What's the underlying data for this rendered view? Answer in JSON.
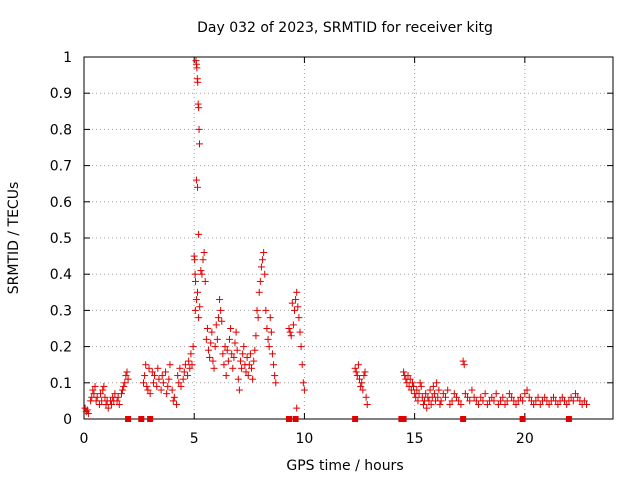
{
  "chart_data": {
    "type": "scatter",
    "title": "Day 032 of 2023, SRMTID for receiver kitg",
    "xlabel": "GPS time / hours",
    "ylabel": "SRMTID / TECUs",
    "xlim": [
      0,
      24
    ],
    "ylim": [
      0,
      1
    ],
    "x_ticks": [
      0,
      5,
      10,
      15,
      20
    ],
    "x_tick_labels": [
      "0",
      "5",
      "10",
      "15",
      "20"
    ],
    "y_ticks": [
      0,
      0.1,
      0.2,
      0.3,
      0.4,
      0.5,
      0.6,
      0.7,
      0.8,
      0.9,
      1
    ],
    "y_tick_labels": [
      "0",
      "0.1",
      "0.2",
      "0.3",
      "0.4",
      "0.5",
      "0.6",
      "0.7",
      "0.8",
      "0.9",
      "1"
    ],
    "grid": true,
    "marker": "+",
    "color": "#e00000",
    "series": [
      {
        "name": "SRMTID",
        "points": [
          [
            0.05,
            0.03
          ],
          [
            0.1,
            0.02
          ],
          [
            0.15,
            0.025
          ],
          [
            0.2,
            0.015
          ],
          [
            0.3,
            0.05
          ],
          [
            0.35,
            0.06
          ],
          [
            0.4,
            0.08
          ],
          [
            0.45,
            0.07
          ],
          [
            0.5,
            0.09
          ],
          [
            0.55,
            0.05
          ],
          [
            0.6,
            0.06
          ],
          [
            0.7,
            0.04
          ],
          [
            0.75,
            0.07
          ],
          [
            0.8,
            0.05
          ],
          [
            0.85,
            0.08
          ],
          [
            0.9,
            0.09
          ],
          [
            0.95,
            0.06
          ],
          [
            1.0,
            0.04
          ],
          [
            1.05,
            0.05
          ],
          [
            1.1,
            0.03
          ],
          [
            1.2,
            0.05
          ],
          [
            1.25,
            0.04
          ],
          [
            1.3,
            0.06
          ],
          [
            1.35,
            0.05
          ],
          [
            1.4,
            0.07
          ],
          [
            1.5,
            0.05
          ],
          [
            1.55,
            0.06
          ],
          [
            1.6,
            0.04
          ],
          [
            1.7,
            0.07
          ],
          [
            1.75,
            0.08
          ],
          [
            1.8,
            0.09
          ],
          [
            1.85,
            0.1
          ],
          [
            1.9,
            0.12
          ],
          [
            1.95,
            0.13
          ],
          [
            2.0,
            0.11
          ],
          [
            2.7,
            0.1
          ],
          [
            2.75,
            0.12
          ],
          [
            2.8,
            0.15
          ],
          [
            2.85,
            0.09
          ],
          [
            2.9,
            0.08
          ],
          [
            2.95,
            0.14
          ],
          [
            3.0,
            0.07
          ],
          [
            3.1,
            0.13
          ],
          [
            3.15,
            0.1
          ],
          [
            3.2,
            0.12
          ],
          [
            3.3,
            0.09
          ],
          [
            3.35,
            0.14
          ],
          [
            3.4,
            0.11
          ],
          [
            3.5,
            0.08
          ],
          [
            3.55,
            0.12
          ],
          [
            3.6,
            0.1
          ],
          [
            3.7,
            0.13
          ],
          [
            3.75,
            0.07
          ],
          [
            3.8,
            0.09
          ],
          [
            3.85,
            0.11
          ],
          [
            3.9,
            0.15
          ],
          [
            4.0,
            0.08
          ],
          [
            4.05,
            0.05
          ],
          [
            4.1,
            0.06
          ],
          [
            4.2,
            0.04
          ],
          [
            4.25,
            0.12
          ],
          [
            4.3,
            0.1
          ],
          [
            4.35,
            0.14
          ],
          [
            4.4,
            0.09
          ],
          [
            4.5,
            0.11
          ],
          [
            4.55,
            0.13
          ],
          [
            4.6,
            0.15
          ],
          [
            4.7,
            0.12
          ],
          [
            4.75,
            0.16
          ],
          [
            4.8,
            0.14
          ],
          [
            4.85,
            0.18
          ],
          [
            4.9,
            0.15
          ],
          [
            4.95,
            0.2
          ],
          [
            5.0,
            0.45
          ],
          [
            5.02,
            0.44
          ],
          [
            5.04,
            0.4
          ],
          [
            5.06,
            0.38
          ],
          [
            5.08,
            0.99
          ],
          [
            5.1,
            0.98
          ],
          [
            5.12,
            0.97
          ],
          [
            5.14,
            0.94
          ],
          [
            5.16,
            0.93
          ],
          [
            5.18,
            0.87
          ],
          [
            5.2,
            0.86
          ],
          [
            5.22,
            0.8
          ],
          [
            5.24,
            0.76
          ],
          [
            5.1,
            0.66
          ],
          [
            5.15,
            0.64
          ],
          [
            5.2,
            0.51
          ],
          [
            5.05,
            0.3
          ],
          [
            5.1,
            0.33
          ],
          [
            5.15,
            0.35
          ],
          [
            5.2,
            0.28
          ],
          [
            5.25,
            0.31
          ],
          [
            5.3,
            0.41
          ],
          [
            5.35,
            0.4
          ],
          [
            5.4,
            0.44
          ],
          [
            5.45,
            0.46
          ],
          [
            5.5,
            0.38
          ],
          [
            5.55,
            0.22
          ],
          [
            5.6,
            0.25
          ],
          [
            5.65,
            0.19
          ],
          [
            5.7,
            0.17
          ],
          [
            5.75,
            0.21
          ],
          [
            5.8,
            0.24
          ],
          [
            5.85,
            0.16
          ],
          [
            5.9,
            0.14
          ],
          [
            5.95,
            0.2
          ],
          [
            6.0,
            0.26
          ],
          [
            6.05,
            0.22
          ],
          [
            6.1,
            0.28
          ],
          [
            6.15,
            0.33
          ],
          [
            6.2,
            0.3
          ],
          [
            6.25,
            0.27
          ],
          [
            6.3,
            0.18
          ],
          [
            6.35,
            0.15
          ],
          [
            6.4,
            0.2
          ],
          [
            6.45,
            0.12
          ],
          [
            6.5,
            0.19
          ],
          [
            6.55,
            0.16
          ],
          [
            6.6,
            0.22
          ],
          [
            6.65,
            0.25
          ],
          [
            6.7,
            0.18
          ],
          [
            6.75,
            0.14
          ],
          [
            6.8,
            0.17
          ],
          [
            6.85,
            0.21
          ],
          [
            6.9,
            0.24
          ],
          [
            6.95,
            0.19
          ],
          [
            7.0,
            0.11
          ],
          [
            7.05,
            0.08
          ],
          [
            7.1,
            0.16
          ],
          [
            7.15,
            0.14
          ],
          [
            7.2,
            0.18
          ],
          [
            7.25,
            0.2
          ],
          [
            7.3,
            0.15
          ],
          [
            7.35,
            0.13
          ],
          [
            7.4,
            0.17
          ],
          [
            7.45,
            0.12
          ],
          [
            7.5,
            0.15
          ],
          [
            7.55,
            0.18
          ],
          [
            7.6,
            0.14
          ],
          [
            7.65,
            0.11
          ],
          [
            7.7,
            0.16
          ],
          [
            7.75,
            0.19
          ],
          [
            7.8,
            0.23
          ],
          [
            7.85,
            0.3
          ],
          [
            7.9,
            0.28
          ],
          [
            7.95,
            0.35
          ],
          [
            8.0,
            0.38
          ],
          [
            8.05,
            0.42
          ],
          [
            8.1,
            0.44
          ],
          [
            8.15,
            0.46
          ],
          [
            8.2,
            0.4
          ],
          [
            8.25,
            0.3
          ],
          [
            8.3,
            0.25
          ],
          [
            8.35,
            0.22
          ],
          [
            8.4,
            0.2
          ],
          [
            8.45,
            0.28
          ],
          [
            8.5,
            0.24
          ],
          [
            8.55,
            0.18
          ],
          [
            8.6,
            0.15
          ],
          [
            8.65,
            0.12
          ],
          [
            8.7,
            0.1
          ],
          [
            9.3,
            0.25
          ],
          [
            9.35,
            0.24
          ],
          [
            9.4,
            0.23
          ],
          [
            9.45,
            0.32
          ],
          [
            9.5,
            0.26
          ],
          [
            9.55,
            0.3
          ],
          [
            9.6,
            0.33
          ],
          [
            9.65,
            0.35
          ],
          [
            9.7,
            0.31
          ],
          [
            9.75,
            0.28
          ],
          [
            9.8,
            0.24
          ],
          [
            9.85,
            0.2
          ],
          [
            9.9,
            0.15
          ],
          [
            9.95,
            0.1
          ],
          [
            10.0,
            0.08
          ],
          [
            9.65,
            0.03
          ],
          [
            12.3,
            0.14
          ],
          [
            12.35,
            0.13
          ],
          [
            12.4,
            0.12
          ],
          [
            12.45,
            0.15
          ],
          [
            12.5,
            0.11
          ],
          [
            12.55,
            0.09
          ],
          [
            12.6,
            0.1
          ],
          [
            12.65,
            0.08
          ],
          [
            12.7,
            0.12
          ],
          [
            12.75,
            0.13
          ],
          [
            12.8,
            0.06
          ],
          [
            12.85,
            0.04
          ],
          [
            14.5,
            0.13
          ],
          [
            14.55,
            0.12
          ],
          [
            14.6,
            0.11
          ],
          [
            14.65,
            0.1
          ],
          [
            14.7,
            0.12
          ],
          [
            14.75,
            0.09
          ],
          [
            14.8,
            0.11
          ],
          [
            14.85,
            0.08
          ],
          [
            14.9,
            0.1
          ],
          [
            14.95,
            0.09
          ],
          [
            15.0,
            0.07
          ],
          [
            15.05,
            0.06
          ],
          [
            15.1,
            0.08
          ],
          [
            15.15,
            0.05
          ],
          [
            15.2,
            0.07
          ],
          [
            15.25,
            0.1
          ],
          [
            15.3,
            0.09
          ],
          [
            15.35,
            0.06
          ],
          [
            15.4,
            0.04
          ],
          [
            15.45,
            0.05
          ],
          [
            15.5,
            0.07
          ],
          [
            15.55,
            0.03
          ],
          [
            15.6,
            0.06
          ],
          [
            15.65,
            0.05
          ],
          [
            15.7,
            0.08
          ],
          [
            15.75,
            0.04
          ],
          [
            15.8,
            0.06
          ],
          [
            15.85,
            0.09
          ],
          [
            15.9,
            0.07
          ],
          [
            15.95,
            0.05
          ],
          [
            16.0,
            0.1
          ],
          [
            16.05,
            0.06
          ],
          [
            16.1,
            0.08
          ],
          [
            16.15,
            0.04
          ],
          [
            16.2,
            0.05
          ],
          [
            16.3,
            0.07
          ],
          [
            16.4,
            0.06
          ],
          [
            16.5,
            0.08
          ],
          [
            16.6,
            0.04
          ],
          [
            16.7,
            0.05
          ],
          [
            16.8,
            0.07
          ],
          [
            16.9,
            0.06
          ],
          [
            17.0,
            0.05
          ],
          [
            17.1,
            0.04
          ],
          [
            17.2,
            0.16
          ],
          [
            17.25,
            0.15
          ],
          [
            17.3,
            0.07
          ],
          [
            17.4,
            0.06
          ],
          [
            17.5,
            0.05
          ],
          [
            17.6,
            0.08
          ],
          [
            17.7,
            0.06
          ],
          [
            17.8,
            0.05
          ],
          [
            17.9,
            0.04
          ],
          [
            18.0,
            0.06
          ],
          [
            18.1,
            0.05
          ],
          [
            18.2,
            0.07
          ],
          [
            18.3,
            0.04
          ],
          [
            18.4,
            0.05
          ],
          [
            18.5,
            0.06
          ],
          [
            18.6,
            0.05
          ],
          [
            18.7,
            0.07
          ],
          [
            18.8,
            0.04
          ],
          [
            18.9,
            0.05
          ],
          [
            19.0,
            0.06
          ],
          [
            19.1,
            0.04
          ],
          [
            19.2,
            0.05
          ],
          [
            19.3,
            0.07
          ],
          [
            19.4,
            0.06
          ],
          [
            19.5,
            0.05
          ],
          [
            19.6,
            0.04
          ],
          [
            19.7,
            0.05
          ],
          [
            19.8,
            0.06
          ],
          [
            19.9,
            0.05
          ],
          [
            20.0,
            0.07
          ],
          [
            20.1,
            0.08
          ],
          [
            20.2,
            0.06
          ],
          [
            20.3,
            0.05
          ],
          [
            20.4,
            0.04
          ],
          [
            20.5,
            0.05
          ],
          [
            20.6,
            0.06
          ],
          [
            20.7,
            0.04
          ],
          [
            20.8,
            0.05
          ],
          [
            20.9,
            0.06
          ],
          [
            21.0,
            0.05
          ],
          [
            21.1,
            0.04
          ],
          [
            21.2,
            0.05
          ],
          [
            21.3,
            0.06
          ],
          [
            21.4,
            0.05
          ],
          [
            21.5,
            0.04
          ],
          [
            21.6,
            0.05
          ],
          [
            21.7,
            0.06
          ],
          [
            21.8,
            0.05
          ],
          [
            21.9,
            0.04
          ],
          [
            22.0,
            0.05
          ],
          [
            22.1,
            0.06
          ],
          [
            22.2,
            0.05
          ],
          [
            22.3,
            0.07
          ],
          [
            22.4,
            0.06
          ],
          [
            22.5,
            0.05
          ],
          [
            22.6,
            0.04
          ],
          [
            22.7,
            0.05
          ],
          [
            22.8,
            0.04
          ]
        ],
        "zero_markers_x": [
          2.0,
          2.6,
          3.0,
          9.3,
          9.6,
          12.3,
          14.4,
          14.5,
          17.2,
          19.9,
          22.0
        ]
      }
    ]
  }
}
